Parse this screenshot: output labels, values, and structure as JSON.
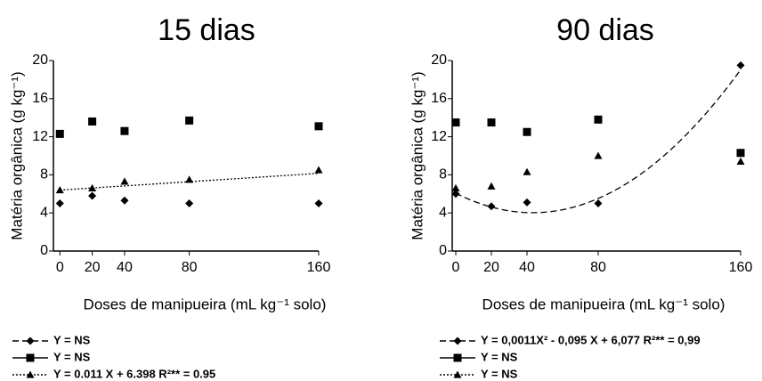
{
  "chart_data": [
    {
      "type": "scatter",
      "title": "15 dias",
      "x_label": "Doses de manipueira (mL kg⁻¹ solo)",
      "y_label": "Matéria orgânica (g kg⁻¹)",
      "x": [
        0,
        20,
        40,
        80,
        160
      ],
      "xlim": [
        -4,
        160
      ],
      "xticks": [
        0,
        20,
        40,
        80,
        160
      ],
      "ylim": [
        0,
        20
      ],
      "yticks": [
        0,
        4,
        8,
        12,
        16,
        20
      ],
      "series": [
        {
          "name": "Y = NS",
          "marker": "diamond",
          "line": "dashed",
          "color": "#000000",
          "values": [
            5.0,
            5.8,
            5.3,
            5.0,
            5.0
          ]
        },
        {
          "name": "Y = NS",
          "marker": "square",
          "line": "solid",
          "color": "#000000",
          "values": [
            12.3,
            13.6,
            12.6,
            13.7,
            13.1
          ]
        },
        {
          "name": "Y = 0.011 X + 6.398 R²** = 0.95",
          "marker": "triangle",
          "line": "dotted",
          "color": "#000000",
          "values": [
            6.4,
            6.6,
            7.3,
            7.5,
            8.5
          ],
          "trend": [
            6.398,
            0.011
          ]
        }
      ]
    },
    {
      "type": "scatter",
      "title": "90 dias",
      "x_label": "Doses de manipueira (mL kg⁻¹ solo)",
      "y_label": "Matéria orgânica (g kg⁻¹)",
      "x": [
        0,
        20,
        40,
        80,
        160
      ],
      "xlim": [
        -2,
        160
      ],
      "xticks": [
        0,
        20,
        40,
        80,
        160
      ],
      "ylim": [
        0,
        20
      ],
      "yticks": [
        0,
        4,
        8,
        12,
        16,
        20
      ],
      "series": [
        {
          "name": "Y = 0,0011X² - 0,095 X + 6,077 R²** = 0,99",
          "marker": "diamond",
          "line": "dashed",
          "color": "#000000",
          "values": [
            6.0,
            4.7,
            5.1,
            5.0,
            19.5
          ],
          "trend": [
            6.077,
            -0.095,
            0.0011
          ]
        },
        {
          "name": "Y = NS",
          "marker": "square",
          "line": "solid",
          "color": "#000000",
          "values": [
            13.5,
            13.5,
            12.5,
            13.8,
            10.3
          ]
        },
        {
          "name": "Y = NS",
          "marker": "triangle",
          "line": "dotted",
          "color": "#000000",
          "values": [
            6.6,
            6.8,
            8.3,
            10.0,
            9.4
          ]
        }
      ]
    }
  ]
}
